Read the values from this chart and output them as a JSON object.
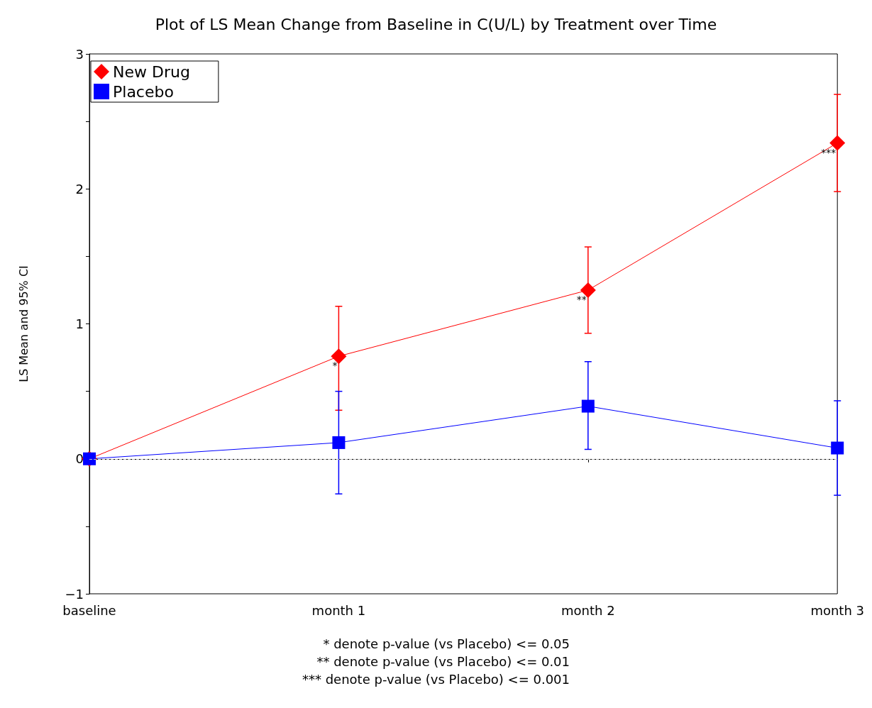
{
  "chart_data": {
    "type": "line",
    "title": "Plot of LS Mean Change from Baseline in C(U/L) by Treatment over Time",
    "ylabel": "LS Mean and 95% CI",
    "categories": [
      "baseline",
      "month 1",
      "month 2",
      "month 3"
    ],
    "series": [
      {
        "name": "New Drug",
        "color": "#ff0000",
        "marker": "diamond",
        "values": [
          0,
          0.76,
          1.25,
          2.34
        ],
        "errors": [
          null,
          [
            0.36,
            1.13
          ],
          [
            0.93,
            1.57
          ],
          [
            1.98,
            2.7
          ]
        ]
      },
      {
        "name": "Placebo",
        "color": "#0000ff",
        "marker": "square",
        "values": [
          0,
          0.12,
          0.39,
          0.08
        ],
        "errors": [
          null,
          [
            -0.26,
            0.5
          ],
          [
            0.07,
            0.72
          ],
          [
            -0.27,
            0.43
          ]
        ]
      }
    ],
    "ylim": [
      -1,
      3
    ],
    "yticks": [
      -1,
      {
        "value": -0.5,
        "label": null
      },
      0,
      {
        "value": 0.5,
        "label": null
      },
      1,
      {
        "value": 1.5,
        "label": null
      },
      2,
      {
        "value": 2.5,
        "label": null
      },
      3
    ],
    "grid": false,
    "legend": "top left",
    "line_style": "solid",
    "ref_lines": [
      {
        "axis": "y",
        "value": 0,
        "color": "#c0c0c0",
        "line_style": "dashed"
      }
    ],
    "annotations": [
      {
        "text": "*",
        "x": "month 1",
        "y": 0.76
      },
      {
        "text": "**",
        "x": "month 2",
        "y": 1.25
      },
      {
        "text": "***",
        "x": "month 3",
        "y": 2.34
      },
      "* denote p-value (vs Placebo) <= 0.05",
      "** denote p-value (vs Placebo) <= 0.01",
      "*** denote p-value (vs Placebo) <= 0.001"
    ]
  }
}
